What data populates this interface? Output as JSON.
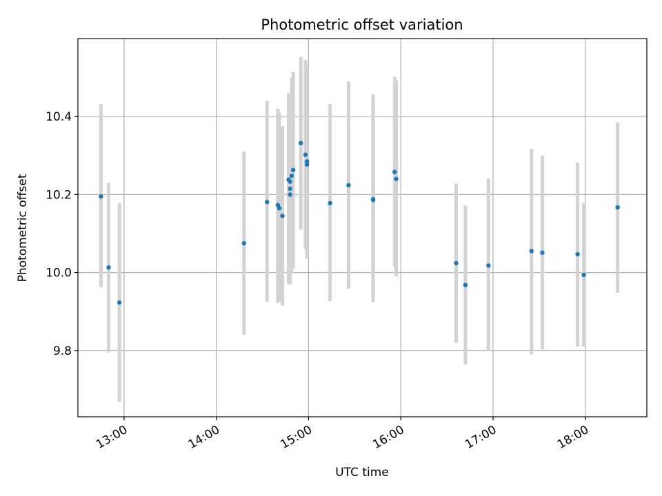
{
  "chart_data": {
    "type": "scatter",
    "title": "Photometric offset variation",
    "xlabel": "UTC time",
    "ylabel": "Photometric offset",
    "x_axis": "time",
    "xlim": [
      "12:30",
      "18:40"
    ],
    "ylim": [
      9.63,
      10.6
    ],
    "xticks": [
      "13:00",
      "14:00",
      "15:00",
      "16:00",
      "17:00",
      "18:00"
    ],
    "yticks": [
      9.8,
      10.0,
      10.2,
      10.4
    ],
    "grid": true,
    "marker_color": "#1f77b4",
    "errorbar_color": "#d3d3d3",
    "points": [
      {
        "x": "12:45",
        "y": 10.195,
        "lo": 9.962,
        "hi": 10.432
      },
      {
        "x": "12:50",
        "y": 10.013,
        "lo": 9.795,
        "hi": 10.23
      },
      {
        "x": "12:57",
        "y": 9.923,
        "lo": 9.668,
        "hi": 10.178
      },
      {
        "x": "14:18",
        "y": 10.075,
        "lo": 9.84,
        "hi": 10.31
      },
      {
        "x": "14:33",
        "y": 10.181,
        "lo": 9.925,
        "hi": 10.44
      },
      {
        "x": "14:40",
        "y": 10.173,
        "lo": 9.922,
        "hi": 10.42
      },
      {
        "x": "14:41",
        "y": 10.165,
        "lo": 9.925,
        "hi": 10.41
      },
      {
        "x": "14:43",
        "y": 10.145,
        "lo": 9.915,
        "hi": 10.375
      },
      {
        "x": "14:47",
        "y": 10.238,
        "lo": 9.97,
        "hi": 10.46
      },
      {
        "x": "14:48",
        "y": 10.233,
        "lo": 9.985,
        "hi": 10.44
      },
      {
        "x": "14:48",
        "y": 10.215,
        "lo": 9.98,
        "hi": 10.42
      },
      {
        "x": "14:48",
        "y": 10.2,
        "lo": 9.97,
        "hi": 10.43
      },
      {
        "x": "14:49",
        "y": 10.248,
        "lo": 10.0,
        "hi": 10.5
      },
      {
        "x": "14:50",
        "y": 10.263,
        "lo": 10.01,
        "hi": 10.515
      },
      {
        "x": "14:55",
        "y": 10.332,
        "lo": 10.11,
        "hi": 10.553
      },
      {
        "x": "14:58",
        "y": 10.302,
        "lo": 10.06,
        "hi": 10.545
      },
      {
        "x": "14:59",
        "y": 10.285,
        "lo": 10.04,
        "hi": 10.53
      },
      {
        "x": "14:59",
        "y": 10.277,
        "lo": 10.035,
        "hi": 10.52
      },
      {
        "x": "15:14",
        "y": 10.178,
        "lo": 9.927,
        "hi": 10.432
      },
      {
        "x": "15:26",
        "y": 10.224,
        "lo": 9.958,
        "hi": 10.49
      },
      {
        "x": "15:42",
        "y": 10.188,
        "lo": 9.923,
        "hi": 10.457
      },
      {
        "x": "15:42",
        "y": 10.186,
        "lo": 9.93,
        "hi": 10.447
      },
      {
        "x": "15:56",
        "y": 10.258,
        "lo": 10.015,
        "hi": 10.502
      },
      {
        "x": "15:57",
        "y": 10.24,
        "lo": 9.99,
        "hi": 10.493
      },
      {
        "x": "16:36",
        "y": 10.024,
        "lo": 9.82,
        "hi": 10.228
      },
      {
        "x": "16:42",
        "y": 9.968,
        "lo": 9.764,
        "hi": 10.172
      },
      {
        "x": "16:57",
        "y": 10.018,
        "lo": 9.8,
        "hi": 10.241
      },
      {
        "x": "17:25",
        "y": 10.055,
        "lo": 9.79,
        "hi": 10.317
      },
      {
        "x": "17:32",
        "y": 10.051,
        "lo": 9.803,
        "hi": 10.3
      },
      {
        "x": "17:55",
        "y": 10.047,
        "lo": 9.81,
        "hi": 10.282
      },
      {
        "x": "17:59",
        "y": 9.994,
        "lo": 9.81,
        "hi": 10.178
      },
      {
        "x": "18:21",
        "y": 10.167,
        "lo": 9.948,
        "hi": 10.385
      }
    ]
  }
}
